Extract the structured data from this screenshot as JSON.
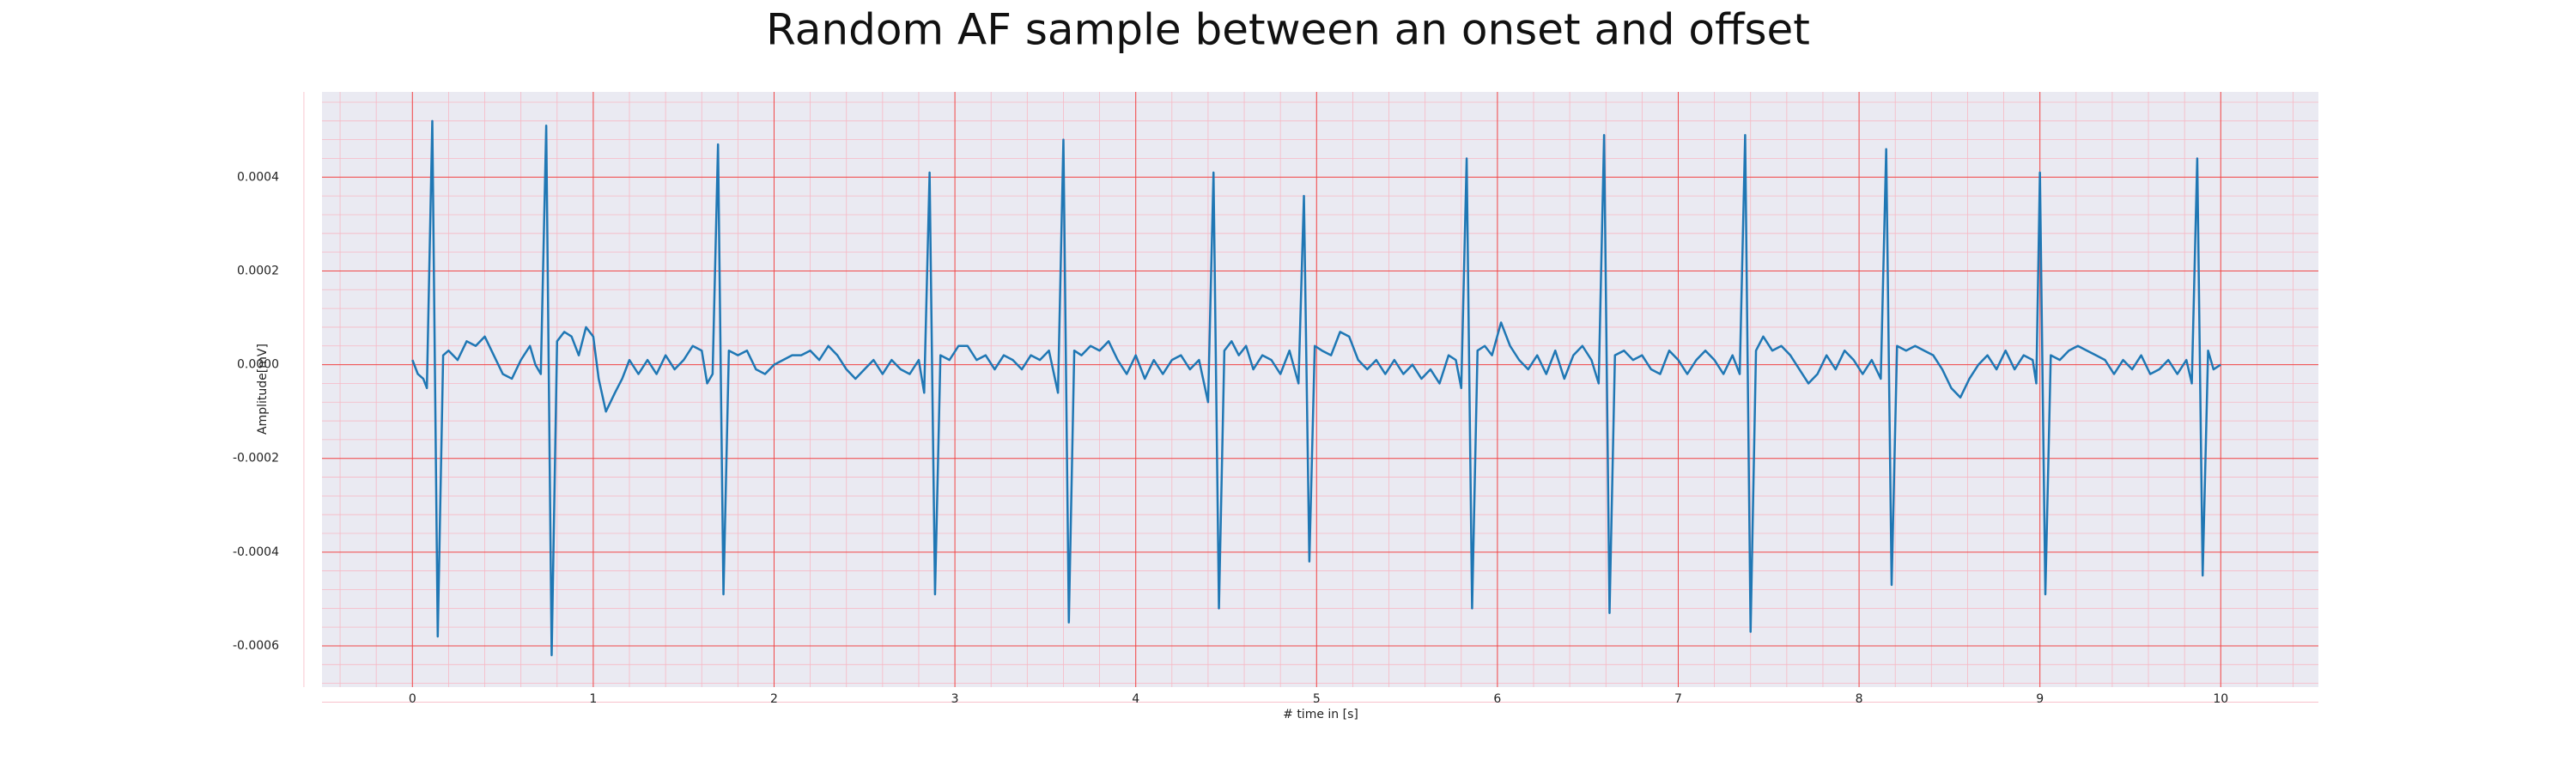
{
  "chart_data": {
    "type": "line",
    "title": "Random AF sample between an onset and offset",
    "xlabel": "# time in [s]",
    "ylabel": "Amplitude[mV]",
    "color": "#1f77b4",
    "grid": true,
    "minor_grid": true,
    "xlim": [
      -0.5,
      10.54
    ],
    "ylim": [
      -0.000688,
      0.000582
    ],
    "xticks": [
      0,
      1,
      2,
      3,
      4,
      5,
      6,
      7,
      8,
      9,
      10
    ],
    "yticks": [
      -0.0006,
      -0.0004,
      -0.0002,
      {
        "value": 0,
        "label": "0.0000"
      },
      0.0002,
      0.0004
    ],
    "x": [
      0,
      0.03,
      0.06,
      0.08,
      0.11,
      0.14,
      0.17,
      0.2,
      0.25,
      0.3,
      0.35,
      0.4,
      0.45,
      0.5,
      0.55,
      0.6,
      0.65,
      0.68,
      0.71,
      0.74,
      0.77,
      0.8,
      0.84,
      0.88,
      0.92,
      0.96,
      1.0,
      1.03,
      1.07,
      1.12,
      1.16,
      1.2,
      1.25,
      1.3,
      1.35,
      1.4,
      1.45,
      1.5,
      1.55,
      1.6,
      1.63,
      1.66,
      1.69,
      1.72,
      1.75,
      1.8,
      1.85,
      1.9,
      1.95,
      2.0,
      2.05,
      2.1,
      2.15,
      2.2,
      2.25,
      2.3,
      2.35,
      2.4,
      2.45,
      2.5,
      2.55,
      2.6,
      2.65,
      2.7,
      2.75,
      2.8,
      2.83,
      2.86,
      2.89,
      2.92,
      2.97,
      3.02,
      3.07,
      3.12,
      3.17,
      3.22,
      3.27,
      3.32,
      3.37,
      3.42,
      3.47,
      3.52,
      3.57,
      3.6,
      3.63,
      3.66,
      3.7,
      3.75,
      3.8,
      3.85,
      3.9,
      3.95,
      4.0,
      4.05,
      4.1,
      4.15,
      4.2,
      4.25,
      4.3,
      4.35,
      4.4,
      4.43,
      4.46,
      4.49,
      4.53,
      4.57,
      4.61,
      4.65,
      4.7,
      4.75,
      4.8,
      4.85,
      4.9,
      4.93,
      4.96,
      4.99,
      5.03,
      5.08,
      5.13,
      5.18,
      5.23,
      5.28,
      5.33,
      5.38,
      5.43,
      5.48,
      5.53,
      5.58,
      5.63,
      5.68,
      5.73,
      5.77,
      5.8,
      5.83,
      5.86,
      5.89,
      5.93,
      5.97,
      6.02,
      6.07,
      6.12,
      6.17,
      6.22,
      6.27,
      6.32,
      6.37,
      6.42,
      6.47,
      6.52,
      6.56,
      6.59,
      6.62,
      6.65,
      6.7,
      6.75,
      6.8,
      6.85,
      6.9,
      6.95,
      7.0,
      7.05,
      7.1,
      7.15,
      7.2,
      7.25,
      7.3,
      7.34,
      7.37,
      7.4,
      7.43,
      7.47,
      7.52,
      7.57,
      7.62,
      7.67,
      7.72,
      7.77,
      7.82,
      7.87,
      7.92,
      7.97,
      8.02,
      8.07,
      8.12,
      8.15,
      8.18,
      8.21,
      8.26,
      8.31,
      8.36,
      8.41,
      8.46,
      8.51,
      8.56,
      8.61,
      8.66,
      8.71,
      8.76,
      8.81,
      8.86,
      8.91,
      8.96,
      8.98,
      9.0,
      9.03,
      9.06,
      9.11,
      9.16,
      9.21,
      9.26,
      9.31,
      9.36,
      9.41,
      9.46,
      9.51,
      9.56,
      9.61,
      9.66,
      9.71,
      9.76,
      9.81,
      9.84,
      9.87,
      9.9,
      9.93,
      9.96,
      10.0
    ],
    "values": [
      1e-05,
      -2e-05,
      -3e-05,
      -5e-05,
      0.00052,
      -0.00058,
      2e-05,
      3e-05,
      1e-05,
      5e-05,
      4e-05,
      6e-05,
      2e-05,
      -2e-05,
      -3e-05,
      1e-05,
      4e-05,
      0,
      -2e-05,
      0.00051,
      -0.00062,
      5e-05,
      7e-05,
      6e-05,
      2e-05,
      8e-05,
      6e-05,
      -3e-05,
      -0.0001,
      -6e-05,
      -3e-05,
      1e-05,
      -2e-05,
      1e-05,
      -2e-05,
      2e-05,
      -1e-05,
      1e-05,
      4e-05,
      3e-05,
      -4e-05,
      -2e-05,
      0.00047,
      -0.00049,
      3e-05,
      2e-05,
      3e-05,
      -1e-05,
      -2e-05,
      0,
      1e-05,
      2e-05,
      2e-05,
      3e-05,
      1e-05,
      4e-05,
      2e-05,
      -1e-05,
      -3e-05,
      -1e-05,
      1e-05,
      -2e-05,
      1e-05,
      -1e-05,
      -2e-05,
      1e-05,
      -6e-05,
      0.00041,
      -0.00049,
      2e-05,
      1e-05,
      4e-05,
      4e-05,
      1e-05,
      2e-05,
      -1e-05,
      2e-05,
      1e-05,
      -1e-05,
      2e-05,
      1e-05,
      3e-05,
      -6e-05,
      0.00048,
      -0.00055,
      3e-05,
      2e-05,
      4e-05,
      3e-05,
      5e-05,
      1e-05,
      -2e-05,
      2e-05,
      -3e-05,
      1e-05,
      -2e-05,
      1e-05,
      2e-05,
      -1e-05,
      1e-05,
      -8e-05,
      0.00041,
      -0.00052,
      3e-05,
      5e-05,
      2e-05,
      4e-05,
      -1e-05,
      2e-05,
      1e-05,
      -2e-05,
      3e-05,
      -4e-05,
      0.00036,
      -0.00042,
      4e-05,
      3e-05,
      2e-05,
      7e-05,
      6e-05,
      1e-05,
      -1e-05,
      1e-05,
      -2e-05,
      1e-05,
      -2e-05,
      0,
      -3e-05,
      -1e-05,
      -4e-05,
      2e-05,
      1e-05,
      -5e-05,
      0.00044,
      -0.00052,
      3e-05,
      4e-05,
      2e-05,
      9e-05,
      4e-05,
      1e-05,
      -1e-05,
      2e-05,
      -2e-05,
      3e-05,
      -3e-05,
      2e-05,
      4e-05,
      1e-05,
      -4e-05,
      0.00049,
      -0.00053,
      2e-05,
      3e-05,
      1e-05,
      2e-05,
      -1e-05,
      -2e-05,
      3e-05,
      1e-05,
      -2e-05,
      1e-05,
      3e-05,
      1e-05,
      -2e-05,
      2e-05,
      -2e-05,
      0.00049,
      -0.00057,
      3e-05,
      6e-05,
      3e-05,
      4e-05,
      2e-05,
      -1e-05,
      -4e-05,
      -2e-05,
      2e-05,
      -1e-05,
      3e-05,
      1e-05,
      -2e-05,
      1e-05,
      -3e-05,
      0.00046,
      -0.00047,
      4e-05,
      3e-05,
      4e-05,
      3e-05,
      2e-05,
      -1e-05,
      -5e-05,
      -7e-05,
      -3e-05,
      0,
      2e-05,
      -1e-05,
      3e-05,
      -1e-05,
      2e-05,
      1e-05,
      -4e-05,
      0.00041,
      -0.00049,
      2e-05,
      1e-05,
      3e-05,
      4e-05,
      3e-05,
      2e-05,
      1e-05,
      -2e-05,
      1e-05,
      -1e-05,
      2e-05,
      -2e-05,
      -1e-05,
      1e-05,
      -2e-05,
      1e-05,
      -4e-05,
      0.00044,
      -0.00045,
      3e-05,
      -1e-05,
      0
    ]
  }
}
